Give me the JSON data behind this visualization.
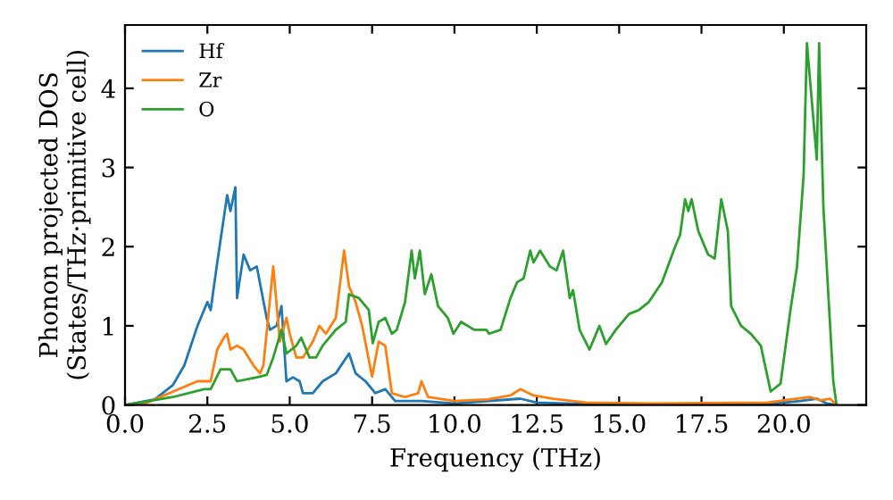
{
  "chart_data": {
    "type": "line",
    "xlabel": "Frequency (THz)",
    "ylabel": "Phonon projected DOS\n(States/THz·primitive cell)",
    "xlim": [
      0,
      22.5
    ],
    "ylim": [
      0,
      4.8
    ],
    "xticks": [
      {
        "value": 0,
        "label": "0.0"
      },
      {
        "value": 2.5,
        "label": "2.5"
      },
      {
        "value": 5,
        "label": "5.0"
      },
      {
        "value": 7.5,
        "label": "7.5"
      },
      {
        "value": 10,
        "label": "10.0"
      },
      {
        "value": 12.5,
        "label": "12.5"
      },
      {
        "value": 15,
        "label": "15.0"
      },
      {
        "value": 17.5,
        "label": "17.5"
      },
      {
        "value": 20,
        "label": "20.0"
      }
    ],
    "yticks": [
      0,
      1,
      2,
      3,
      4
    ],
    "legend": "top left",
    "grid": false,
    "series": [
      {
        "name": "Hf",
        "color": "#1f77b4",
        "x": [
          0,
          0.9,
          1.45,
          1.8,
          2.2,
          2.5,
          2.6,
          2.8,
          3.1,
          3.2,
          3.35,
          3.4,
          3.6,
          3.8,
          4.0,
          4.3,
          4.4,
          4.6,
          4.75,
          4.9,
          5.1,
          5.3,
          5.4,
          5.7,
          6.0,
          6.4,
          6.8,
          7.0,
          7.3,
          7.6,
          7.9,
          8.2,
          9.0,
          10.0,
          12.0,
          12.5,
          14.0,
          19.5,
          20.5,
          21.0,
          21.3,
          21.6
        ],
        "values": [
          0,
          0.07,
          0.25,
          0.5,
          1.0,
          1.3,
          1.2,
          1.8,
          2.65,
          2.45,
          2.75,
          1.35,
          1.9,
          1.7,
          1.75,
          1.1,
          0.95,
          1.0,
          1.25,
          0.3,
          0.35,
          0.3,
          0.15,
          0.15,
          0.3,
          0.4,
          0.65,
          0.4,
          0.3,
          0.15,
          0.2,
          0.05,
          0.05,
          0.02,
          0.08,
          0.03,
          0.01,
          0.01,
          0.05,
          0.08,
          0.02,
          0
        ]
      },
      {
        "name": "Zr",
        "color": "#ff7f0e",
        "x": [
          0,
          0.5,
          2.2,
          2.6,
          2.8,
          3.0,
          3.1,
          3.2,
          3.4,
          3.6,
          3.9,
          4.1,
          4.2,
          4.5,
          4.7,
          4.9,
          5.0,
          5.2,
          5.4,
          5.7,
          5.9,
          6.1,
          6.4,
          6.65,
          6.8,
          7.0,
          7.2,
          7.5,
          7.7,
          7.9,
          8.1,
          8.5,
          8.9,
          9.0,
          9.2,
          10.0,
          11.0,
          11.7,
          12.0,
          12.4,
          13.0,
          14.0,
          16.0,
          19.5,
          20.2,
          20.8,
          21.1,
          21.4,
          21.6
        ],
        "values": [
          0,
          0,
          0.3,
          0.3,
          0.7,
          0.85,
          0.9,
          0.7,
          0.75,
          0.7,
          0.5,
          0.4,
          0.5,
          1.75,
          0.8,
          1.1,
          0.9,
          0.6,
          0.6,
          0.8,
          1.0,
          0.9,
          1.1,
          1.95,
          1.5,
          1.3,
          1.0,
          0.36,
          0.8,
          0.75,
          0.15,
          0.1,
          0.15,
          0.3,
          0.1,
          0.05,
          0.07,
          0.12,
          0.2,
          0.12,
          0.08,
          0.03,
          0.02,
          0.03,
          0.07,
          0.1,
          0.06,
          0.08,
          0
        ]
      },
      {
        "name": "O",
        "color": "#2ca02c",
        "x": [
          0,
          1.45,
          2.4,
          2.6,
          2.9,
          3.2,
          3.4,
          4.0,
          4.3,
          4.5,
          4.75,
          4.9,
          5.2,
          5.35,
          5.6,
          5.8,
          6.0,
          6.4,
          6.7,
          6.8,
          7.1,
          7.4,
          7.52,
          7.7,
          7.9,
          8.1,
          8.25,
          8.5,
          8.7,
          8.8,
          8.95,
          9.1,
          9.3,
          9.5,
          9.8,
          9.97,
          10.2,
          10.6,
          10.97,
          11.05,
          11.4,
          11.7,
          11.9,
          12.1,
          12.3,
          12.4,
          12.6,
          12.9,
          13.1,
          13.3,
          13.5,
          13.6,
          13.8,
          14.1,
          14.4,
          14.6,
          14.9,
          15.3,
          15.6,
          15.9,
          16.3,
          16.7,
          16.85,
          17.0,
          17.1,
          17.2,
          17.4,
          17.7,
          17.9,
          18.1,
          18.3,
          18.4,
          18.7,
          19.0,
          19.3,
          19.6,
          19.9,
          20.2,
          20.4,
          20.6,
          20.7,
          21.0,
          21.07,
          21.2,
          21.5,
          21.6
        ],
        "values": [
          0,
          0.1,
          0.2,
          0.2,
          0.45,
          0.45,
          0.3,
          0.35,
          0.38,
          0.6,
          0.95,
          0.65,
          0.75,
          0.85,
          0.6,
          0.6,
          0.75,
          0.95,
          1.05,
          1.4,
          1.35,
          1.2,
          0.78,
          1.05,
          1.1,
          0.9,
          0.95,
          1.3,
          1.95,
          1.6,
          1.95,
          1.4,
          1.65,
          1.25,
          1.1,
          0.9,
          1.05,
          0.95,
          0.95,
          0.9,
          0.95,
          1.35,
          1.55,
          1.6,
          1.95,
          1.8,
          1.95,
          1.75,
          1.7,
          1.95,
          1.35,
          1.45,
          0.95,
          0.7,
          1.0,
          0.77,
          0.95,
          1.15,
          1.2,
          1.3,
          1.55,
          2.0,
          2.15,
          2.6,
          2.45,
          2.6,
          2.2,
          1.9,
          1.85,
          2.6,
          2.2,
          1.25,
          1.0,
          0.9,
          0.75,
          0.17,
          0.27,
          1.2,
          1.75,
          2.9,
          4.57,
          3.1,
          4.57,
          2.5,
          0.3,
          0
        ]
      }
    ]
  }
}
